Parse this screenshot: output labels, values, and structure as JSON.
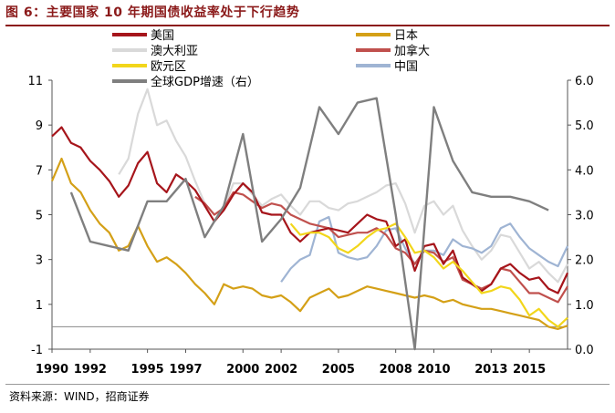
{
  "header": {
    "title": "图 6：主要国家 10 年期国债收益率处于下行趋势"
  },
  "footer": {
    "source": "资料来源：WIND，招商证券"
  },
  "chart_data": {
    "type": "line",
    "x_ticks": [
      "1990",
      "1992",
      "1995",
      "1997",
      "2000",
      "2002",
      "2005",
      "2008",
      "2010",
      "2013",
      "2015"
    ],
    "y_left_ticks": [
      "-1",
      "1",
      "3",
      "5",
      "7",
      "9",
      "11"
    ],
    "y_left_range": [
      -1,
      11
    ],
    "y_right_ticks": [
      "0.0",
      "1.0",
      "2.0",
      "3.0",
      "4.0",
      "5.0",
      "6.0"
    ],
    "y_right_range": [
      0,
      6
    ],
    "x_range": [
      1990.0,
      2017.0
    ],
    "legend_position": "top",
    "series": [
      {
        "name": "美国",
        "color": "#A6151B",
        "axis": "left",
        "points": [
          [
            1990.0,
            8.5
          ],
          [
            1990.5,
            8.9
          ],
          [
            1991.0,
            8.2
          ],
          [
            1991.5,
            8.0
          ],
          [
            1992.0,
            7.4
          ],
          [
            1992.5,
            7.0
          ],
          [
            1993.0,
            6.5
          ],
          [
            1993.5,
            5.8
          ],
          [
            1994.0,
            6.3
          ],
          [
            1994.5,
            7.3
          ],
          [
            1995.0,
            7.8
          ],
          [
            1995.5,
            6.4
          ],
          [
            1996.0,
            6.0
          ],
          [
            1996.5,
            6.8
          ],
          [
            1997.0,
            6.5
          ],
          [
            1997.5,
            6.1
          ],
          [
            1998.0,
            5.4
          ],
          [
            1998.5,
            4.7
          ],
          [
            1999.0,
            5.2
          ],
          [
            1999.5,
            5.9
          ],
          [
            2000.0,
            6.4
          ],
          [
            2000.5,
            6.0
          ],
          [
            2001.0,
            5.1
          ],
          [
            2001.5,
            5.0
          ],
          [
            2002.0,
            5.0
          ],
          [
            2002.5,
            4.2
          ],
          [
            2003.0,
            3.8
          ],
          [
            2003.5,
            4.2
          ],
          [
            2004.0,
            4.3
          ],
          [
            2004.5,
            4.4
          ],
          [
            2005.0,
            4.3
          ],
          [
            2005.5,
            4.2
          ],
          [
            2006.0,
            4.6
          ],
          [
            2006.5,
            5.0
          ],
          [
            2007.0,
            4.8
          ],
          [
            2007.5,
            4.7
          ],
          [
            2008.0,
            3.6
          ],
          [
            2008.5,
            3.9
          ],
          [
            2009.0,
            2.5
          ],
          [
            2009.5,
            3.6
          ],
          [
            2010.0,
            3.7
          ],
          [
            2010.5,
            2.8
          ],
          [
            2011.0,
            3.4
          ],
          [
            2011.5,
            2.2
          ],
          [
            2012.0,
            1.9
          ],
          [
            2012.5,
            1.6
          ],
          [
            2013.0,
            1.9
          ],
          [
            2013.5,
            2.6
          ],
          [
            2014.0,
            2.8
          ],
          [
            2014.5,
            2.4
          ],
          [
            2015.0,
            2.1
          ],
          [
            2015.5,
            2.2
          ],
          [
            2016.0,
            1.7
          ],
          [
            2016.5,
            1.5
          ],
          [
            2017.0,
            2.4
          ]
        ]
      },
      {
        "name": "日本",
        "color": "#D4A017",
        "axis": "left",
        "points": [
          [
            1990.0,
            6.5
          ],
          [
            1990.5,
            7.5
          ],
          [
            1991.0,
            6.4
          ],
          [
            1991.5,
            6.0
          ],
          [
            1992.0,
            5.2
          ],
          [
            1992.5,
            4.6
          ],
          [
            1993.0,
            4.2
          ],
          [
            1993.5,
            3.4
          ],
          [
            1994.0,
            3.6
          ],
          [
            1994.5,
            4.5
          ],
          [
            1995.0,
            3.6
          ],
          [
            1995.5,
            2.9
          ],
          [
            1996.0,
            3.1
          ],
          [
            1996.5,
            2.8
          ],
          [
            1997.0,
            2.4
          ],
          [
            1997.5,
            1.9
          ],
          [
            1998.0,
            1.5
          ],
          [
            1998.5,
            1.0
          ],
          [
            1999.0,
            1.9
          ],
          [
            1999.5,
            1.7
          ],
          [
            2000.0,
            1.8
          ],
          [
            2000.5,
            1.7
          ],
          [
            2001.0,
            1.4
          ],
          [
            2001.5,
            1.3
          ],
          [
            2002.0,
            1.4
          ],
          [
            2002.5,
            1.1
          ],
          [
            2003.0,
            0.7
          ],
          [
            2003.5,
            1.3
          ],
          [
            2004.0,
            1.5
          ],
          [
            2004.5,
            1.7
          ],
          [
            2005.0,
            1.3
          ],
          [
            2005.5,
            1.4
          ],
          [
            2006.0,
            1.6
          ],
          [
            2006.5,
            1.8
          ],
          [
            2007.0,
            1.7
          ],
          [
            2007.5,
            1.6
          ],
          [
            2008.0,
            1.5
          ],
          [
            2008.5,
            1.4
          ],
          [
            2009.0,
            1.3
          ],
          [
            2009.5,
            1.4
          ],
          [
            2010.0,
            1.3
          ],
          [
            2010.5,
            1.1
          ],
          [
            2011.0,
            1.2
          ],
          [
            2011.5,
            1.0
          ],
          [
            2012.0,
            0.9
          ],
          [
            2012.5,
            0.8
          ],
          [
            2013.0,
            0.8
          ],
          [
            2013.5,
            0.7
          ],
          [
            2014.0,
            0.6
          ],
          [
            2014.5,
            0.5
          ],
          [
            2015.0,
            0.4
          ],
          [
            2015.5,
            0.3
          ],
          [
            2016.0,
            0.0
          ],
          [
            2016.5,
            -0.1
          ],
          [
            2017.0,
            0.05
          ]
        ]
      },
      {
        "name": "澳大利亚",
        "color": "#D9D9D9",
        "axis": "left",
        "points": [
          [
            1993.5,
            6.8
          ],
          [
            1994.0,
            7.5
          ],
          [
            1994.5,
            9.5
          ],
          [
            1995.0,
            10.6
          ],
          [
            1995.5,
            9.0
          ],
          [
            1996.0,
            9.2
          ],
          [
            1996.5,
            8.3
          ],
          [
            1997.0,
            7.6
          ],
          [
            1997.5,
            6.5
          ],
          [
            1998.0,
            5.5
          ],
          [
            1998.5,
            5.0
          ],
          [
            1999.0,
            5.3
          ],
          [
            1999.5,
            6.4
          ],
          [
            2000.0,
            6.4
          ],
          [
            2000.5,
            5.9
          ],
          [
            2001.0,
            5.4
          ],
          [
            2001.5,
            5.7
          ],
          [
            2002.0,
            5.9
          ],
          [
            2002.5,
            5.4
          ],
          [
            2003.0,
            5.0
          ],
          [
            2003.5,
            5.6
          ],
          [
            2004.0,
            5.6
          ],
          [
            2004.5,
            5.3
          ],
          [
            2005.0,
            5.2
          ],
          [
            2005.5,
            5.5
          ],
          [
            2006.0,
            5.6
          ],
          [
            2006.5,
            5.8
          ],
          [
            2007.0,
            6.0
          ],
          [
            2007.5,
            6.3
          ],
          [
            2008.0,
            6.4
          ],
          [
            2008.5,
            5.5
          ],
          [
            2009.0,
            4.2
          ],
          [
            2009.5,
            5.4
          ],
          [
            2010.0,
            5.6
          ],
          [
            2010.5,
            5.0
          ],
          [
            2011.0,
            5.4
          ],
          [
            2011.5,
            4.3
          ],
          [
            2012.0,
            3.6
          ],
          [
            2012.5,
            3.0
          ],
          [
            2013.0,
            3.4
          ],
          [
            2013.5,
            4.1
          ],
          [
            2014.0,
            4.0
          ],
          [
            2014.5,
            3.3
          ],
          [
            2015.0,
            2.6
          ],
          [
            2015.5,
            2.9
          ],
          [
            2016.0,
            2.4
          ],
          [
            2016.5,
            2.0
          ],
          [
            2017.0,
            2.8
          ]
        ]
      },
      {
        "name": "加拿大",
        "color": "#C0504D",
        "axis": "left",
        "points": [
          [
            1997.5,
            5.8
          ],
          [
            1998.0,
            5.5
          ],
          [
            1998.5,
            5.0
          ],
          [
            1999.0,
            5.3
          ],
          [
            1999.5,
            6.0
          ],
          [
            2000.0,
            5.9
          ],
          [
            2000.5,
            5.6
          ],
          [
            2001.0,
            5.3
          ],
          [
            2001.5,
            5.5
          ],
          [
            2002.0,
            5.4
          ],
          [
            2002.5,
            5.0
          ],
          [
            2003.0,
            4.8
          ],
          [
            2003.5,
            4.6
          ],
          [
            2004.0,
            4.5
          ],
          [
            2004.5,
            4.4
          ],
          [
            2005.0,
            4.0
          ],
          [
            2005.5,
            4.1
          ],
          [
            2006.0,
            4.2
          ],
          [
            2006.5,
            4.2
          ],
          [
            2007.0,
            4.4
          ],
          [
            2007.5,
            4.1
          ],
          [
            2008.0,
            3.5
          ],
          [
            2008.5,
            3.3
          ],
          [
            2009.0,
            2.8
          ],
          [
            2009.5,
            3.4
          ],
          [
            2010.0,
            3.3
          ],
          [
            2010.5,
            2.9
          ],
          [
            2011.0,
            3.1
          ],
          [
            2011.5,
            2.1
          ],
          [
            2012.0,
            1.9
          ],
          [
            2012.5,
            1.7
          ],
          [
            2013.0,
            1.9
          ],
          [
            2013.5,
            2.6
          ],
          [
            2014.0,
            2.5
          ],
          [
            2014.5,
            2.0
          ],
          [
            2015.0,
            1.5
          ],
          [
            2015.5,
            1.5
          ],
          [
            2016.0,
            1.3
          ],
          [
            2016.5,
            1.1
          ],
          [
            2017.0,
            1.8
          ]
        ]
      },
      {
        "name": "欧元区",
        "color": "#F2D61B",
        "axis": "left",
        "points": [
          [
            2002.5,
            4.6
          ],
          [
            2003.0,
            4.1
          ],
          [
            2003.5,
            4.2
          ],
          [
            2004.0,
            4.2
          ],
          [
            2004.5,
            4.0
          ],
          [
            2005.0,
            3.5
          ],
          [
            2005.5,
            3.3
          ],
          [
            2006.0,
            3.6
          ],
          [
            2006.5,
            4.0
          ],
          [
            2007.0,
            4.3
          ],
          [
            2007.5,
            4.4
          ],
          [
            2008.0,
            4.6
          ],
          [
            2008.5,
            4.0
          ],
          [
            2009.0,
            3.3
          ],
          [
            2009.5,
            3.4
          ],
          [
            2010.0,
            3.1
          ],
          [
            2010.5,
            2.6
          ],
          [
            2011.0,
            2.9
          ],
          [
            2011.5,
            2.5
          ],
          [
            2012.0,
            2.0
          ],
          [
            2012.5,
            1.5
          ],
          [
            2013.0,
            1.6
          ],
          [
            2013.5,
            1.8
          ],
          [
            2014.0,
            1.7
          ],
          [
            2014.5,
            1.2
          ],
          [
            2015.0,
            0.5
          ],
          [
            2015.5,
            0.8
          ],
          [
            2016.0,
            0.3
          ],
          [
            2016.5,
            0.0
          ],
          [
            2017.0,
            0.4
          ]
        ]
      },
      {
        "name": "中国",
        "color": "#9FB4D3",
        "axis": "left",
        "points": [
          [
            2002.0,
            2.0
          ],
          [
            2002.5,
            2.6
          ],
          [
            2003.0,
            3.0
          ],
          [
            2003.5,
            3.2
          ],
          [
            2004.0,
            4.7
          ],
          [
            2004.5,
            4.9
          ],
          [
            2005.0,
            3.3
          ],
          [
            2005.5,
            3.1
          ],
          [
            2006.0,
            3.0
          ],
          [
            2006.5,
            3.1
          ],
          [
            2007.0,
            3.6
          ],
          [
            2007.5,
            4.3
          ],
          [
            2008.0,
            4.4
          ],
          [
            2008.5,
            3.5
          ],
          [
            2009.0,
            2.8
          ],
          [
            2009.5,
            3.4
          ],
          [
            2010.0,
            3.4
          ],
          [
            2010.5,
            3.2
          ],
          [
            2011.0,
            3.9
          ],
          [
            2011.5,
            3.6
          ],
          [
            2012.0,
            3.5
          ],
          [
            2012.5,
            3.3
          ],
          [
            2013.0,
            3.6
          ],
          [
            2013.5,
            4.4
          ],
          [
            2014.0,
            4.6
          ],
          [
            2014.5,
            4.0
          ],
          [
            2015.0,
            3.5
          ],
          [
            2015.5,
            3.2
          ],
          [
            2016.0,
            2.9
          ],
          [
            2016.5,
            2.7
          ],
          [
            2017.0,
            3.6
          ]
        ]
      },
      {
        "name": "全球GDP增速（右）",
        "color": "#7F7F7F",
        "axis": "right",
        "points": [
          [
            1991.0,
            3.5
          ],
          [
            1992.0,
            2.4
          ],
          [
            1993.0,
            2.3
          ],
          [
            1994.0,
            2.2
          ],
          [
            1995.0,
            3.3
          ],
          [
            1996.0,
            3.3
          ],
          [
            1997.0,
            3.8
          ],
          [
            1998.0,
            2.5
          ],
          [
            1999.0,
            3.2
          ],
          [
            2000.0,
            4.8
          ],
          [
            2001.0,
            2.4
          ],
          [
            2002.0,
            2.9
          ],
          [
            2003.0,
            3.6
          ],
          [
            2004.0,
            5.4
          ],
          [
            2005.0,
            4.8
          ],
          [
            2006.0,
            5.5
          ],
          [
            2007.0,
            5.6
          ],
          [
            2008.0,
            3.0
          ],
          [
            2009.0,
            0.0
          ],
          [
            2010.0,
            5.4
          ],
          [
            2011.0,
            4.2
          ],
          [
            2012.0,
            3.5
          ],
          [
            2013.0,
            3.4
          ],
          [
            2014.0,
            3.4
          ],
          [
            2015.0,
            3.3
          ],
          [
            2016.0,
            3.1
          ]
        ]
      }
    ]
  }
}
